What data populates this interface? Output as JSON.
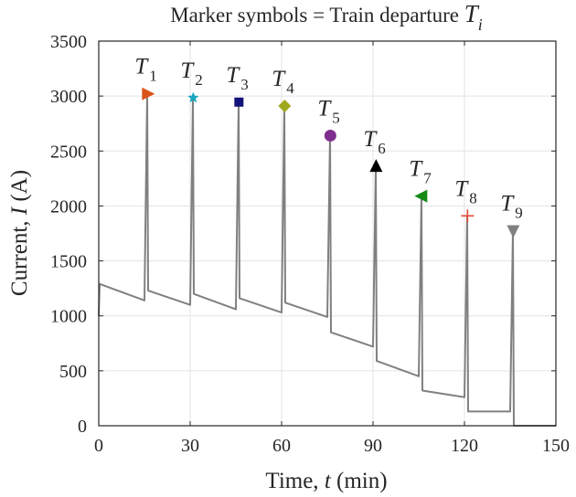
{
  "chart_data": {
    "type": "line",
    "title_prefix": "Marker symbols = Train departure ",
    "title_var": "T",
    "title_sub": "i",
    "xlabel_prefix": "Time, ",
    "xlabel_var": "t",
    "xlabel_suffix": " (min)",
    "ylabel_prefix": "Current, ",
    "ylabel_var": "I",
    "ylabel_suffix": " (A)",
    "xlim": [
      0,
      150
    ],
    "ylim": [
      0,
      3500
    ],
    "xticks": [
      0,
      30,
      60,
      90,
      120,
      150
    ],
    "yticks": [
      0,
      500,
      1000,
      1500,
      2000,
      2500,
      3000,
      3500
    ],
    "grid": true,
    "series": [
      {
        "color": "#808080",
        "x": [
          0,
          0.3,
          15,
          15.9,
          16.2,
          30,
          30.9,
          31.2,
          45,
          45.9,
          46.2,
          60,
          60.9,
          61.2,
          75,
          75.9,
          76.2,
          90,
          90.9,
          91.2,
          105,
          105.9,
          106.2,
          120,
          120.9,
          121.2,
          135,
          135.9,
          136.2,
          150
        ],
        "y": [
          1000,
          1290,
          1140,
          3020,
          1230,
          1100,
          2985,
          1200,
          1060,
          2945,
          1160,
          1030,
          2910,
          1120,
          990,
          2640,
          850,
          720,
          2360,
          590,
          450,
          2090,
          320,
          260,
          1910,
          130,
          130,
          1775,
          0,
          0
        ]
      }
    ],
    "markers": [
      {
        "name": "T",
        "sub": "1",
        "x": 16,
        "y": 3020,
        "symbol": "triangle-right",
        "color": "#D95319"
      },
      {
        "name": "T",
        "sub": "2",
        "x": 31,
        "y": 2985,
        "symbol": "star",
        "color": "#1AA5C2"
      },
      {
        "name": "T",
        "sub": "3",
        "x": 46,
        "y": 2945,
        "symbol": "square",
        "color": "#12127A"
      },
      {
        "name": "T",
        "sub": "4",
        "x": 61,
        "y": 2910,
        "symbol": "diamond",
        "color": "#A0A81C"
      },
      {
        "name": "T",
        "sub": "5",
        "x": 76,
        "y": 2640,
        "symbol": "circle",
        "color": "#7E2F8E"
      },
      {
        "name": "T",
        "sub": "6",
        "x": 91,
        "y": 2360,
        "symbol": "triangle-up",
        "color": "#000000"
      },
      {
        "name": "T",
        "sub": "7",
        "x": 106,
        "y": 2090,
        "symbol": "triangle-left",
        "color": "#148A14"
      },
      {
        "name": "T",
        "sub": "8",
        "x": 121,
        "y": 1910,
        "symbol": "plus",
        "color": "#E8483A"
      },
      {
        "name": "T",
        "sub": "9",
        "x": 136,
        "y": 1775,
        "symbol": "triangle-down",
        "color": "#808080"
      }
    ]
  }
}
